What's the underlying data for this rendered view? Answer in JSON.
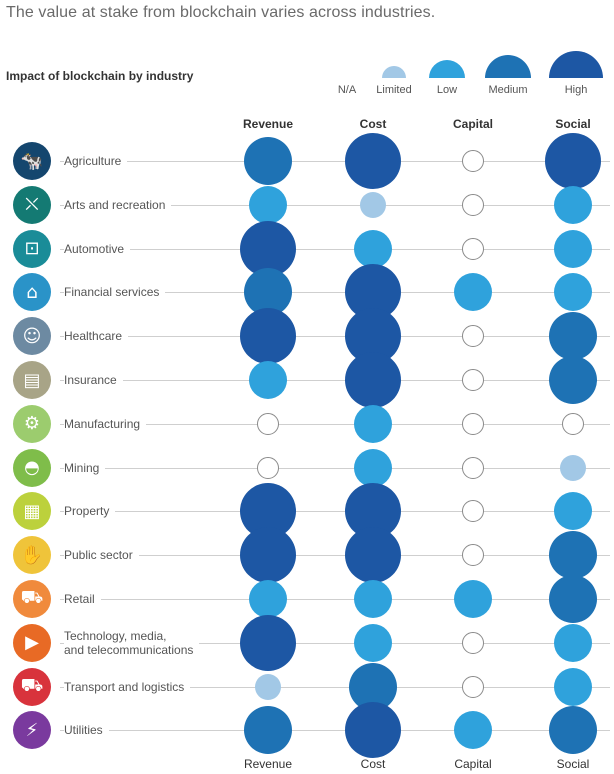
{
  "chart_data": {
    "type": "bubble-matrix",
    "title": "The value at stake from blockchain varies across industries.",
    "subtitle": "Impact of blockchain by industry",
    "columns": [
      "Revenue",
      "Cost",
      "Capital",
      "Social"
    ],
    "legend": [
      "N/A",
      "Limited",
      "Low",
      "Medium",
      "High"
    ],
    "scale": {
      "N/A": 0,
      "Limited": 1,
      "Low": 2,
      "Medium": 3,
      "High": 4
    },
    "colors": {
      "N/A": "#ffffff",
      "Limited": "#a2c8e6",
      "Low": "#2fa2dc",
      "Medium": "#1e72b4",
      "High": "#1d57a4"
    },
    "rows": [
      {
        "industry": "Agriculture",
        "icon": "cow-icon",
        "icon_color": "#14466e",
        "values": {
          "Revenue": "Medium",
          "Cost": "High",
          "Capital": "N/A",
          "Social": "High"
        }
      },
      {
        "industry": "Arts and recreation",
        "icon": "director-chair-icon",
        "icon_color": "#147a73",
        "values": {
          "Revenue": "Low",
          "Cost": "Limited",
          "Capital": "N/A",
          "Social": "Low"
        }
      },
      {
        "industry": "Automotive",
        "icon": "car-chassis-icon",
        "icon_color": "#1a8c98",
        "values": {
          "Revenue": "High",
          "Cost": "Low",
          "Capital": "N/A",
          "Social": "Low"
        }
      },
      {
        "industry": "Financial services",
        "icon": "bank-icon",
        "icon_color": "#2a93c8",
        "values": {
          "Revenue": "Medium",
          "Cost": "High",
          "Capital": "Low",
          "Social": "Low"
        }
      },
      {
        "industry": "Healthcare",
        "icon": "doctor-icon",
        "icon_color": "#6d8aa2",
        "values": {
          "Revenue": "High",
          "Cost": "High",
          "Capital": "N/A",
          "Social": "Medium"
        }
      },
      {
        "industry": "Insurance",
        "icon": "document-icon",
        "icon_color": "#a8a487",
        "values": {
          "Revenue": "Low",
          "Cost": "High",
          "Capital": "N/A",
          "Social": "Medium"
        }
      },
      {
        "industry": "Manufacturing",
        "icon": "robot-arm-icon",
        "icon_color": "#9ccc6e",
        "values": {
          "Revenue": "N/A",
          "Cost": "Low",
          "Capital": "N/A",
          "Social": "N/A"
        }
      },
      {
        "industry": "Mining",
        "icon": "helmet-icon",
        "icon_color": "#7fbd4a",
        "values": {
          "Revenue": "N/A",
          "Cost": "Low",
          "Capital": "N/A",
          "Social": "Limited"
        }
      },
      {
        "industry": "Property",
        "icon": "building-icon",
        "icon_color": "#bcd13c",
        "values": {
          "Revenue": "High",
          "Cost": "High",
          "Capital": "N/A",
          "Social": "Low"
        }
      },
      {
        "industry": "Public sector",
        "icon": "handshake-icon",
        "icon_color": "#efc43a",
        "values": {
          "Revenue": "High",
          "Cost": "High",
          "Capital": "N/A",
          "Social": "Medium"
        }
      },
      {
        "industry": "Retail",
        "icon": "cart-icon",
        "icon_color": "#f08a3c",
        "values": {
          "Revenue": "Low",
          "Cost": "Low",
          "Capital": "Low",
          "Social": "Medium"
        }
      },
      {
        "industry": "Technology, media,\nand telecommunications",
        "icon": "media-icon",
        "icon_color": "#e86a25",
        "values": {
          "Revenue": "High",
          "Cost": "Low",
          "Capital": "N/A",
          "Social": "Low"
        }
      },
      {
        "industry": "Transport and logistics",
        "icon": "truck-icon",
        "icon_color": "#d8333c",
        "values": {
          "Revenue": "Limited",
          "Cost": "Medium",
          "Capital": "N/A",
          "Social": "Low"
        }
      },
      {
        "industry": "Utilities",
        "icon": "lightning-icon",
        "icon_color": "#7a3a9e",
        "values": {
          "Revenue": "Medium",
          "Cost": "High",
          "Capital": "Low",
          "Social": "Medium"
        }
      }
    ]
  }
}
